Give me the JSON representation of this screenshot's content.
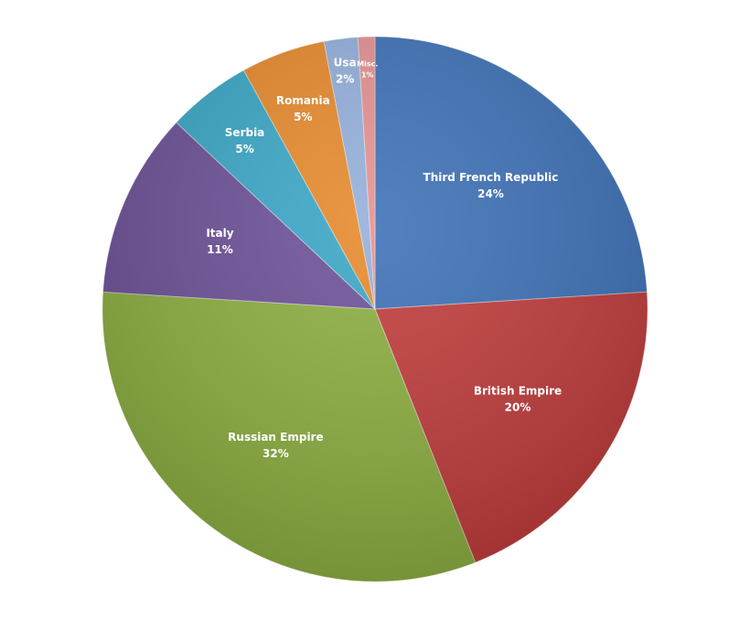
{
  "chart_data": {
    "type": "pie",
    "categories": [
      "Third French Republic",
      "British Empire",
      "Russian Empire",
      "Italy",
      "Serbia",
      "Romania",
      "Usa",
      "Misc."
    ],
    "values": [
      24,
      20,
      32,
      11,
      5,
      5,
      2,
      1
    ],
    "value_labels": [
      "24%",
      "20%",
      "32%",
      "11%",
      "5%",
      "5%",
      "2%",
      "1%"
    ],
    "colors": [
      "#3b70b6",
      "#c13a3a",
      "#8cae3f",
      "#6b4f97",
      "#38a6c6",
      "#e7892a",
      "#93afdb",
      "#e39090"
    ]
  }
}
